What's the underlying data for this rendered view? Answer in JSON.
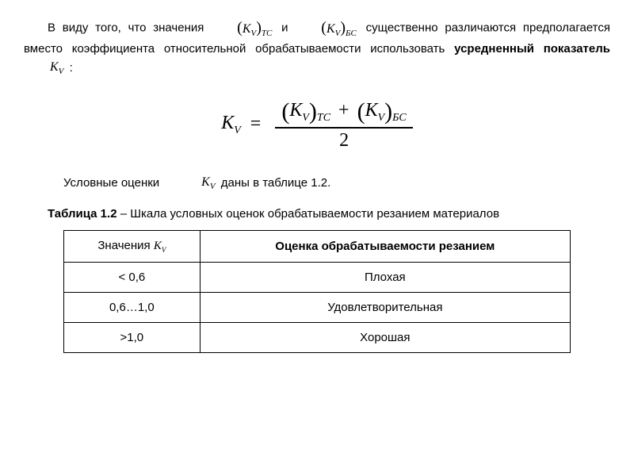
{
  "para1": {
    "t1": "В виду того, что значения ",
    "sym1": "(K",
    "sym1_inner": "V",
    "sym1_outer": "ТС",
    "t2": " и ",
    "sym2": "(K",
    "sym2_inner": "V",
    "sym2_outer": "БС",
    "t3": " существенно различаются предполагается вместо коэффициента относительной обрабатываемости использовать ",
    "bold": "усредненный показатель ",
    "sym3_k": "K",
    "sym3_sub": "V",
    "t4": " :"
  },
  "formula": {
    "lhs_k": "K",
    "lhs_sub": "V",
    "eq": "=",
    "num_t1_k": "K",
    "num_t1_inner": "V",
    "num_t1_outer": "ТС",
    "plus": "+",
    "num_t2_k": "K",
    "num_t2_inner": "V",
    "num_t2_outer": "БС",
    "den": "2"
  },
  "para2": {
    "t1": "Условные оценки",
    "sym_k": "K",
    "sym_sub": "V",
    "t2": "  даны в таблице 1.2."
  },
  "caption": {
    "bold": "Таблица 1.2",
    "rest": " – Шкала условных оценок обрабатываемости резанием материалов"
  },
  "table": {
    "header": {
      "c1": "Значения   ",
      "c1_sym_k": "K",
      "c1_sym_sub": "V",
      "c2": "Оценка обрабатываемости резанием"
    },
    "rows": [
      {
        "c1": "< 0,6",
        "c2": "Плохая"
      },
      {
        "c1": "0,6…1,0",
        "c2": "Удовлетворительная"
      },
      {
        "c1": ">1,0",
        "c2": "Хорошая"
      }
    ]
  }
}
